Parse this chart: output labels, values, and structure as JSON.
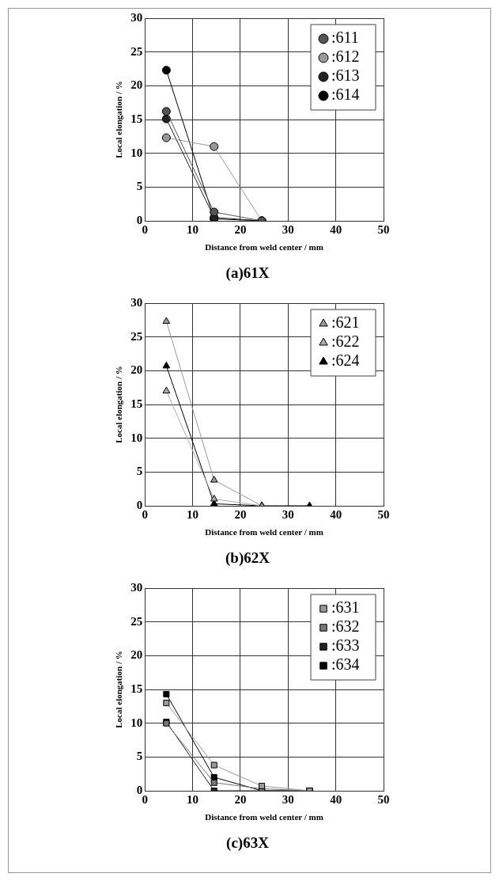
{
  "chart_data": [
    {
      "type": "line",
      "title": "(a)61X",
      "xlabel": "Distance from weld center / mm",
      "ylabel": "Local elongation / %",
      "x": [
        4.5,
        14.5,
        24.5
      ],
      "xlim": [
        0,
        50
      ],
      "xticks": [
        0,
        10,
        20,
        30,
        40,
        50
      ],
      "ylim": [
        0,
        30
      ],
      "yticks": [
        0,
        5,
        10,
        15,
        20,
        25,
        30
      ],
      "grid": true,
      "legend": "top right",
      "marker": "circle",
      "series": [
        {
          "name": ":611",
          "color": "#555555",
          "values": [
            16.2,
            1.3,
            0
          ]
        },
        {
          "name": ":612",
          "color": "#999999",
          "values": [
            12.3,
            11,
            0
          ]
        },
        {
          "name": ":613",
          "color": "#222222",
          "values": [
            15.1,
            0.5,
            0
          ]
        },
        {
          "name": ":614",
          "color": "#000000",
          "values": [
            22.3,
            0.3,
            0
          ]
        }
      ]
    },
    {
      "type": "line",
      "title": "(b)62X",
      "xlabel": "Distance from weld center / mm",
      "ylabel": "Local elongation / %",
      "x": [
        4.5,
        14.5,
        24.5,
        34.5
      ],
      "xlim": [
        0,
        50
      ],
      "xticks": [
        0,
        10,
        20,
        30,
        40,
        50
      ],
      "ylim": [
        0,
        30
      ],
      "yticks": [
        0,
        5,
        10,
        15,
        20,
        25,
        30
      ],
      "grid": true,
      "legend": "top right",
      "marker": "triangle",
      "series": [
        {
          "name": ":621",
          "color": "#999999",
          "values": [
            27.3,
            3.8,
            0,
            null
          ]
        },
        {
          "name": ":622",
          "color": "#aaaaaa",
          "values": [
            17,
            1,
            0,
            null
          ]
        },
        {
          "name": ":624",
          "color": "#000000",
          "values": [
            20.7,
            0.3,
            0,
            0
          ]
        }
      ]
    },
    {
      "type": "line",
      "title": "(c)63X",
      "xlabel": "Distance from weld center / mm",
      "ylabel": "Local elongation / %",
      "x": [
        4.5,
        14.5,
        24.5,
        34.5
      ],
      "xlim": [
        0,
        50
      ],
      "xticks": [
        0,
        10,
        20,
        30,
        40,
        50
      ],
      "ylim": [
        0,
        30
      ],
      "yticks": [
        0,
        5,
        10,
        15,
        20,
        25,
        30
      ],
      "grid": true,
      "legend": "top right",
      "marker": "square",
      "series": [
        {
          "name": ":631",
          "color": "#999999",
          "values": [
            13,
            3.8,
            0.7,
            0
          ]
        },
        {
          "name": ":632",
          "color": "#777777",
          "values": [
            10,
            1.2,
            0.3,
            0
          ]
        },
        {
          "name": ":633",
          "color": "#222222",
          "values": [
            10.2,
            0,
            0,
            0
          ]
        },
        {
          "name": ":634",
          "color": "#000000",
          "values": [
            14.3,
            2,
            0,
            0
          ]
        }
      ]
    }
  ]
}
